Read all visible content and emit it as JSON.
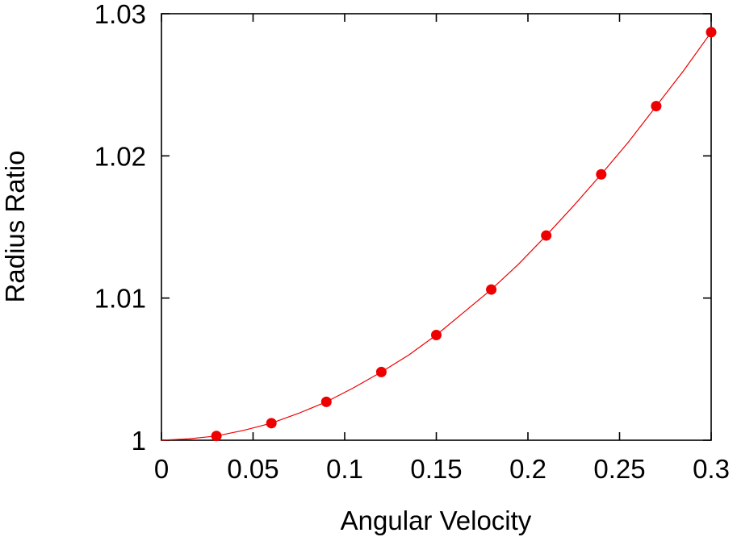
{
  "chart_data": {
    "type": "line",
    "title": "",
    "xlabel": "Angular Velocity",
    "ylabel": "Radius Ratio",
    "xlim": [
      0,
      0.3
    ],
    "ylim": [
      1,
      1.03
    ],
    "xticks": [
      0,
      0.05,
      0.1,
      0.15,
      0.2,
      0.25,
      0.3
    ],
    "xtick_labels": [
      "0",
      "0.05",
      "0.1",
      "0.15",
      "0.2",
      "0.25",
      "0.3"
    ],
    "yticks": [
      1,
      1.01,
      1.02,
      1.03
    ],
    "ytick_labels": [
      "1",
      "1.01",
      "1.02",
      "1.03"
    ],
    "grid": false,
    "legend": "none",
    "series": [
      {
        "name": "data points",
        "style": "markers",
        "color": "#ee0000",
        "x": [
          0.03,
          0.06,
          0.09,
          0.12,
          0.15,
          0.18,
          0.21,
          0.24,
          0.27,
          0.3
        ],
        "y": [
          1.0003,
          1.0012,
          1.0027,
          1.0048,
          1.0074,
          1.0106,
          1.0144,
          1.0187,
          1.0235,
          1.0287
        ]
      },
      {
        "name": "fit curve",
        "style": "line",
        "color": "#ee0000",
        "x": [
          0,
          0.015,
          0.03,
          0.045,
          0.06,
          0.075,
          0.09,
          0.105,
          0.12,
          0.135,
          0.15,
          0.165,
          0.18,
          0.195,
          0.21,
          0.225,
          0.24,
          0.255,
          0.27,
          0.285,
          0.3
        ],
        "y": [
          1.0,
          1.0001,
          1.0003,
          1.0007,
          1.0012,
          1.0019,
          1.0027,
          1.0037,
          1.0048,
          1.006,
          1.0074,
          1.009,
          1.0106,
          1.0124,
          1.0144,
          1.0165,
          1.0187,
          1.021,
          1.0235,
          1.026,
          1.0287
        ]
      }
    ]
  }
}
